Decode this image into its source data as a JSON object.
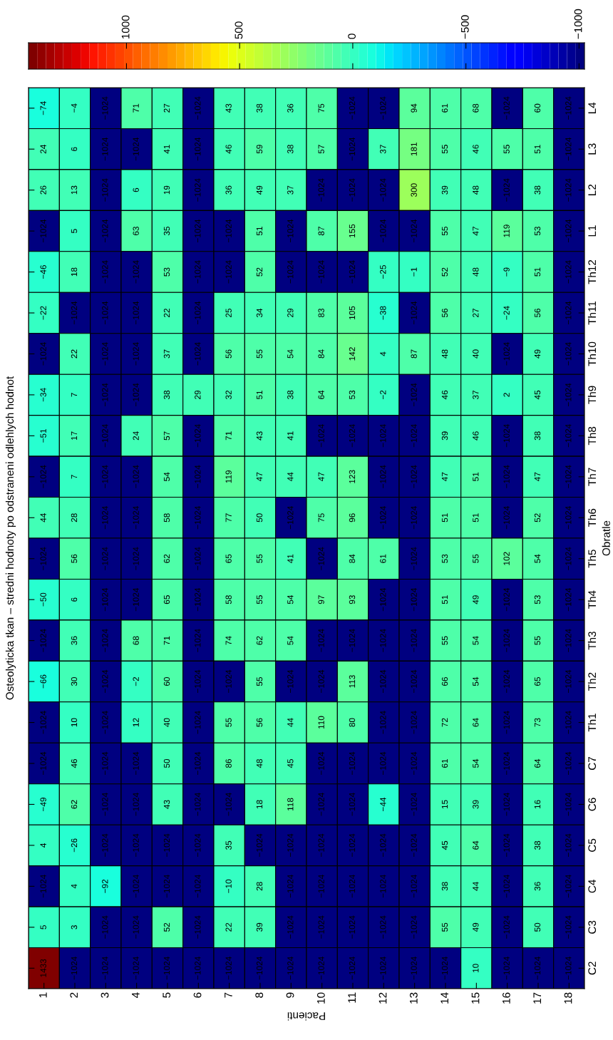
{
  "chart_data": {
    "type": "heatmap",
    "title": "Osteolyticka tkan – stredni hodnoty po odstraneni odlehlych hodnot",
    "xlabel": "Pacienti",
    "ylabel": "Obratle",
    "categories": [
      "1",
      "2",
      "3",
      "4",
      "5",
      "6",
      "7",
      "8",
      "9",
      "10",
      "11",
      "12",
      "13",
      "14",
      "15",
      "16",
      "17",
      "18"
    ],
    "y_categories": [
      "L4",
      "L3",
      "L2",
      "L1",
      "Th12",
      "Th11",
      "Th10",
      "Th9",
      "Th8",
      "Th7",
      "Th6",
      "Th5",
      "Th4",
      "Th3",
      "Th2",
      "Th1",
      "C7",
      "C6",
      "C5",
      "C4",
      "C3",
      "C2"
    ],
    "cells": [
      [
        -74,
        -4,
        -1024,
        71,
        27,
        -1024,
        43,
        38,
        36,
        75,
        -1024,
        -1024,
        94,
        61,
        68,
        -1024,
        60,
        -1024
      ],
      [
        24,
        6,
        -1024,
        -1024,
        41,
        -1024,
        46,
        59,
        38,
        57,
        -1024,
        37,
        181,
        55,
        46,
        55,
        51,
        -1024
      ],
      [
        26,
        13,
        -1024,
        6,
        19,
        -1024,
        36,
        49,
        37,
        -1024,
        -1024,
        -1024,
        300,
        39,
        48,
        -1024,
        38,
        -1024
      ],
      [
        -1024,
        5,
        -1024,
        63,
        35,
        -1024,
        -1024,
        51,
        -1024,
        87,
        155,
        -1024,
        -1024,
        55,
        47,
        119,
        53,
        -1024
      ],
      [
        -46,
        18,
        -1024,
        -1024,
        53,
        -1024,
        -1024,
        52,
        -1024,
        -1024,
        -1024,
        -25,
        -1,
        52,
        48,
        -9,
        51,
        -1024
      ],
      [
        -22,
        -1024,
        -1024,
        -1024,
        22,
        -1024,
        25,
        34,
        29,
        83,
        105,
        -38,
        -1024,
        56,
        27,
        -24,
        56,
        -1024
      ],
      [
        -1024,
        22,
        -1024,
        -1024,
        37,
        -1024,
        56,
        55,
        54,
        84,
        142,
        4,
        87,
        48,
        40,
        -1024,
        49,
        -1024
      ],
      [
        -34,
        7,
        -1024,
        -1024,
        38,
        29,
        32,
        51,
        38,
        64,
        53,
        -2,
        -1024,
        46,
        37,
        2,
        45,
        -1024
      ],
      [
        -51,
        17,
        -1024,
        24,
        57,
        -1024,
        71,
        43,
        41,
        -1024,
        -1024,
        -1024,
        -1024,
        39,
        46,
        -1024,
        38,
        -1024
      ],
      [
        -1024,
        7,
        -1024,
        -1024,
        54,
        -1024,
        119,
        47,
        44,
        47,
        123,
        -1024,
        -1024,
        47,
        51,
        -1024,
        47,
        -1024
      ],
      [
        44,
        28,
        -1024,
        -1024,
        58,
        -1024,
        77,
        50,
        -1024,
        75,
        96,
        -1024,
        -1024,
        51,
        51,
        -1024,
        52,
        -1024
      ],
      [
        -1024,
        56,
        -1024,
        -1024,
        62,
        -1024,
        65,
        55,
        41,
        -1024,
        84,
        61,
        -1024,
        53,
        55,
        102,
        54,
        -1024
      ],
      [
        -50,
        6,
        -1024,
        -1024,
        65,
        -1024,
        58,
        55,
        54,
        97,
        93,
        -1024,
        -1024,
        51,
        49,
        -1024,
        53,
        -1024
      ],
      [
        -1024,
        36,
        -1024,
        68,
        71,
        -1024,
        74,
        62,
        54,
        -1024,
        -1024,
        -1024,
        -1024,
        55,
        54,
        -1024,
        55,
        -1024
      ],
      [
        -66,
        30,
        -1024,
        -2,
        60,
        -1024,
        -1024,
        55,
        -1024,
        -1024,
        113,
        -1024,
        -1024,
        66,
        54,
        -1024,
        65,
        -1024
      ],
      [
        -1024,
        10,
        -1024,
        12,
        40,
        -1024,
        55,
        56,
        44,
        110,
        80,
        -1024,
        -1024,
        72,
        64,
        -1024,
        73,
        -1024
      ],
      [
        -1024,
        46,
        -1024,
        -1024,
        50,
        -1024,
        86,
        48,
        45,
        -1024,
        -1024,
        -1024,
        -1024,
        61,
        54,
        -1024,
        64,
        -1024
      ],
      [
        -49,
        62,
        -1024,
        -1024,
        43,
        -1024,
        -1024,
        18,
        118,
        -1024,
        -1024,
        -44,
        -1024,
        15,
        39,
        -1024,
        16,
        -1024
      ],
      [
        4,
        -26,
        -1024,
        -1024,
        -1024,
        -1024,
        35,
        -1024,
        -1024,
        -1024,
        -1024,
        -1024,
        -1024,
        45,
        64,
        -1024,
        38,
        -1024
      ],
      [
        -1024,
        4,
        -92,
        -1024,
        -1024,
        -1024,
        -10,
        28,
        -1024,
        -1024,
        -1024,
        -1024,
        -1024,
        38,
        44,
        -1024,
        36,
        -1024
      ],
      [
        5,
        3,
        -1024,
        -1024,
        52,
        -1024,
        22,
        39,
        -1024,
        -1024,
        -1024,
        -1024,
        -1024,
        55,
        49,
        -1024,
        50,
        -1024
      ],
      [
        1433,
        -1024,
        -1024,
        -1024,
        -1024,
        -1024,
        -1024,
        -1024,
        -1024,
        -1024,
        -1024,
        -1024,
        -1024,
        -1024,
        10,
        -1024,
        -1024,
        -1024
      ]
    ],
    "clim": [
      1433,
      -1024
    ],
    "cticks": [
      1000,
      500,
      0,
      {
        "value": -500,
        "label": "−500"
      },
      {
        "value": -1000,
        "label": "−1000"
      }
    ],
    "data_labels": true
  }
}
